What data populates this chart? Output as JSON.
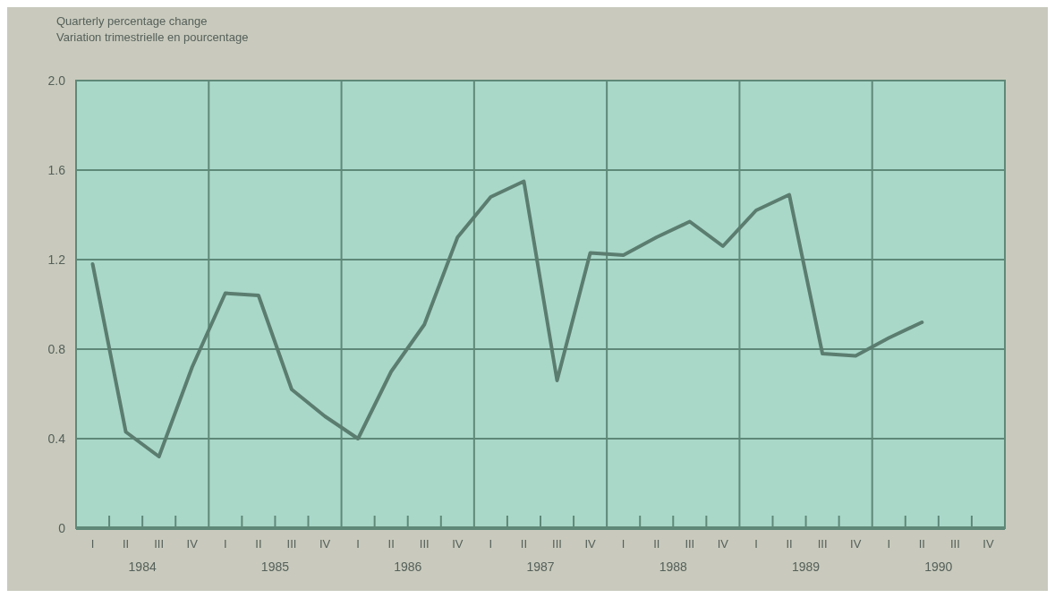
{
  "chart_data": {
    "type": "line",
    "title": "Quarterly percentage change",
    "subtitle": "Variation trimestrielle en pourcentage",
    "categories": [
      "I",
      "II",
      "III",
      "IV",
      "I",
      "II",
      "III",
      "IV",
      "I",
      "II",
      "III",
      "IV",
      "I",
      "II",
      "III",
      "IV",
      "I",
      "II",
      "III",
      "IV",
      "I",
      "II",
      "III",
      "IV",
      "I",
      "II",
      "III",
      "IV"
    ],
    "annotations": [
      "1984",
      "1985",
      "1986",
      "1987",
      "1988",
      "1989",
      "1990"
    ],
    "series": [
      {
        "color": "#5b7d70",
        "values": [
          1.18,
          0.43,
          0.32,
          0.72,
          1.05,
          1.04,
          0.62,
          0.5,
          0.4,
          0.7,
          0.91,
          1.3,
          1.48,
          1.55,
          0.66,
          1.23,
          1.22,
          1.3,
          1.37,
          1.26,
          1.42,
          1.49,
          0.78,
          0.77,
          0.85,
          0.92,
          null,
          null
        ]
      }
    ],
    "ylim": [
      0,
      2
    ],
    "yticks": [
      0,
      {
        "value": 0.4,
        "label": "0.4"
      },
      {
        "value": 0.8,
        "label": "0.8"
      },
      {
        "value": 1.2,
        "label": "1.2"
      },
      {
        "value": 1.6,
        "label": "1.6"
      },
      {
        "value": 2,
        "label": "2.0"
      }
    ],
    "grid": true,
    "line_style": "solid",
    "marker": "none"
  }
}
